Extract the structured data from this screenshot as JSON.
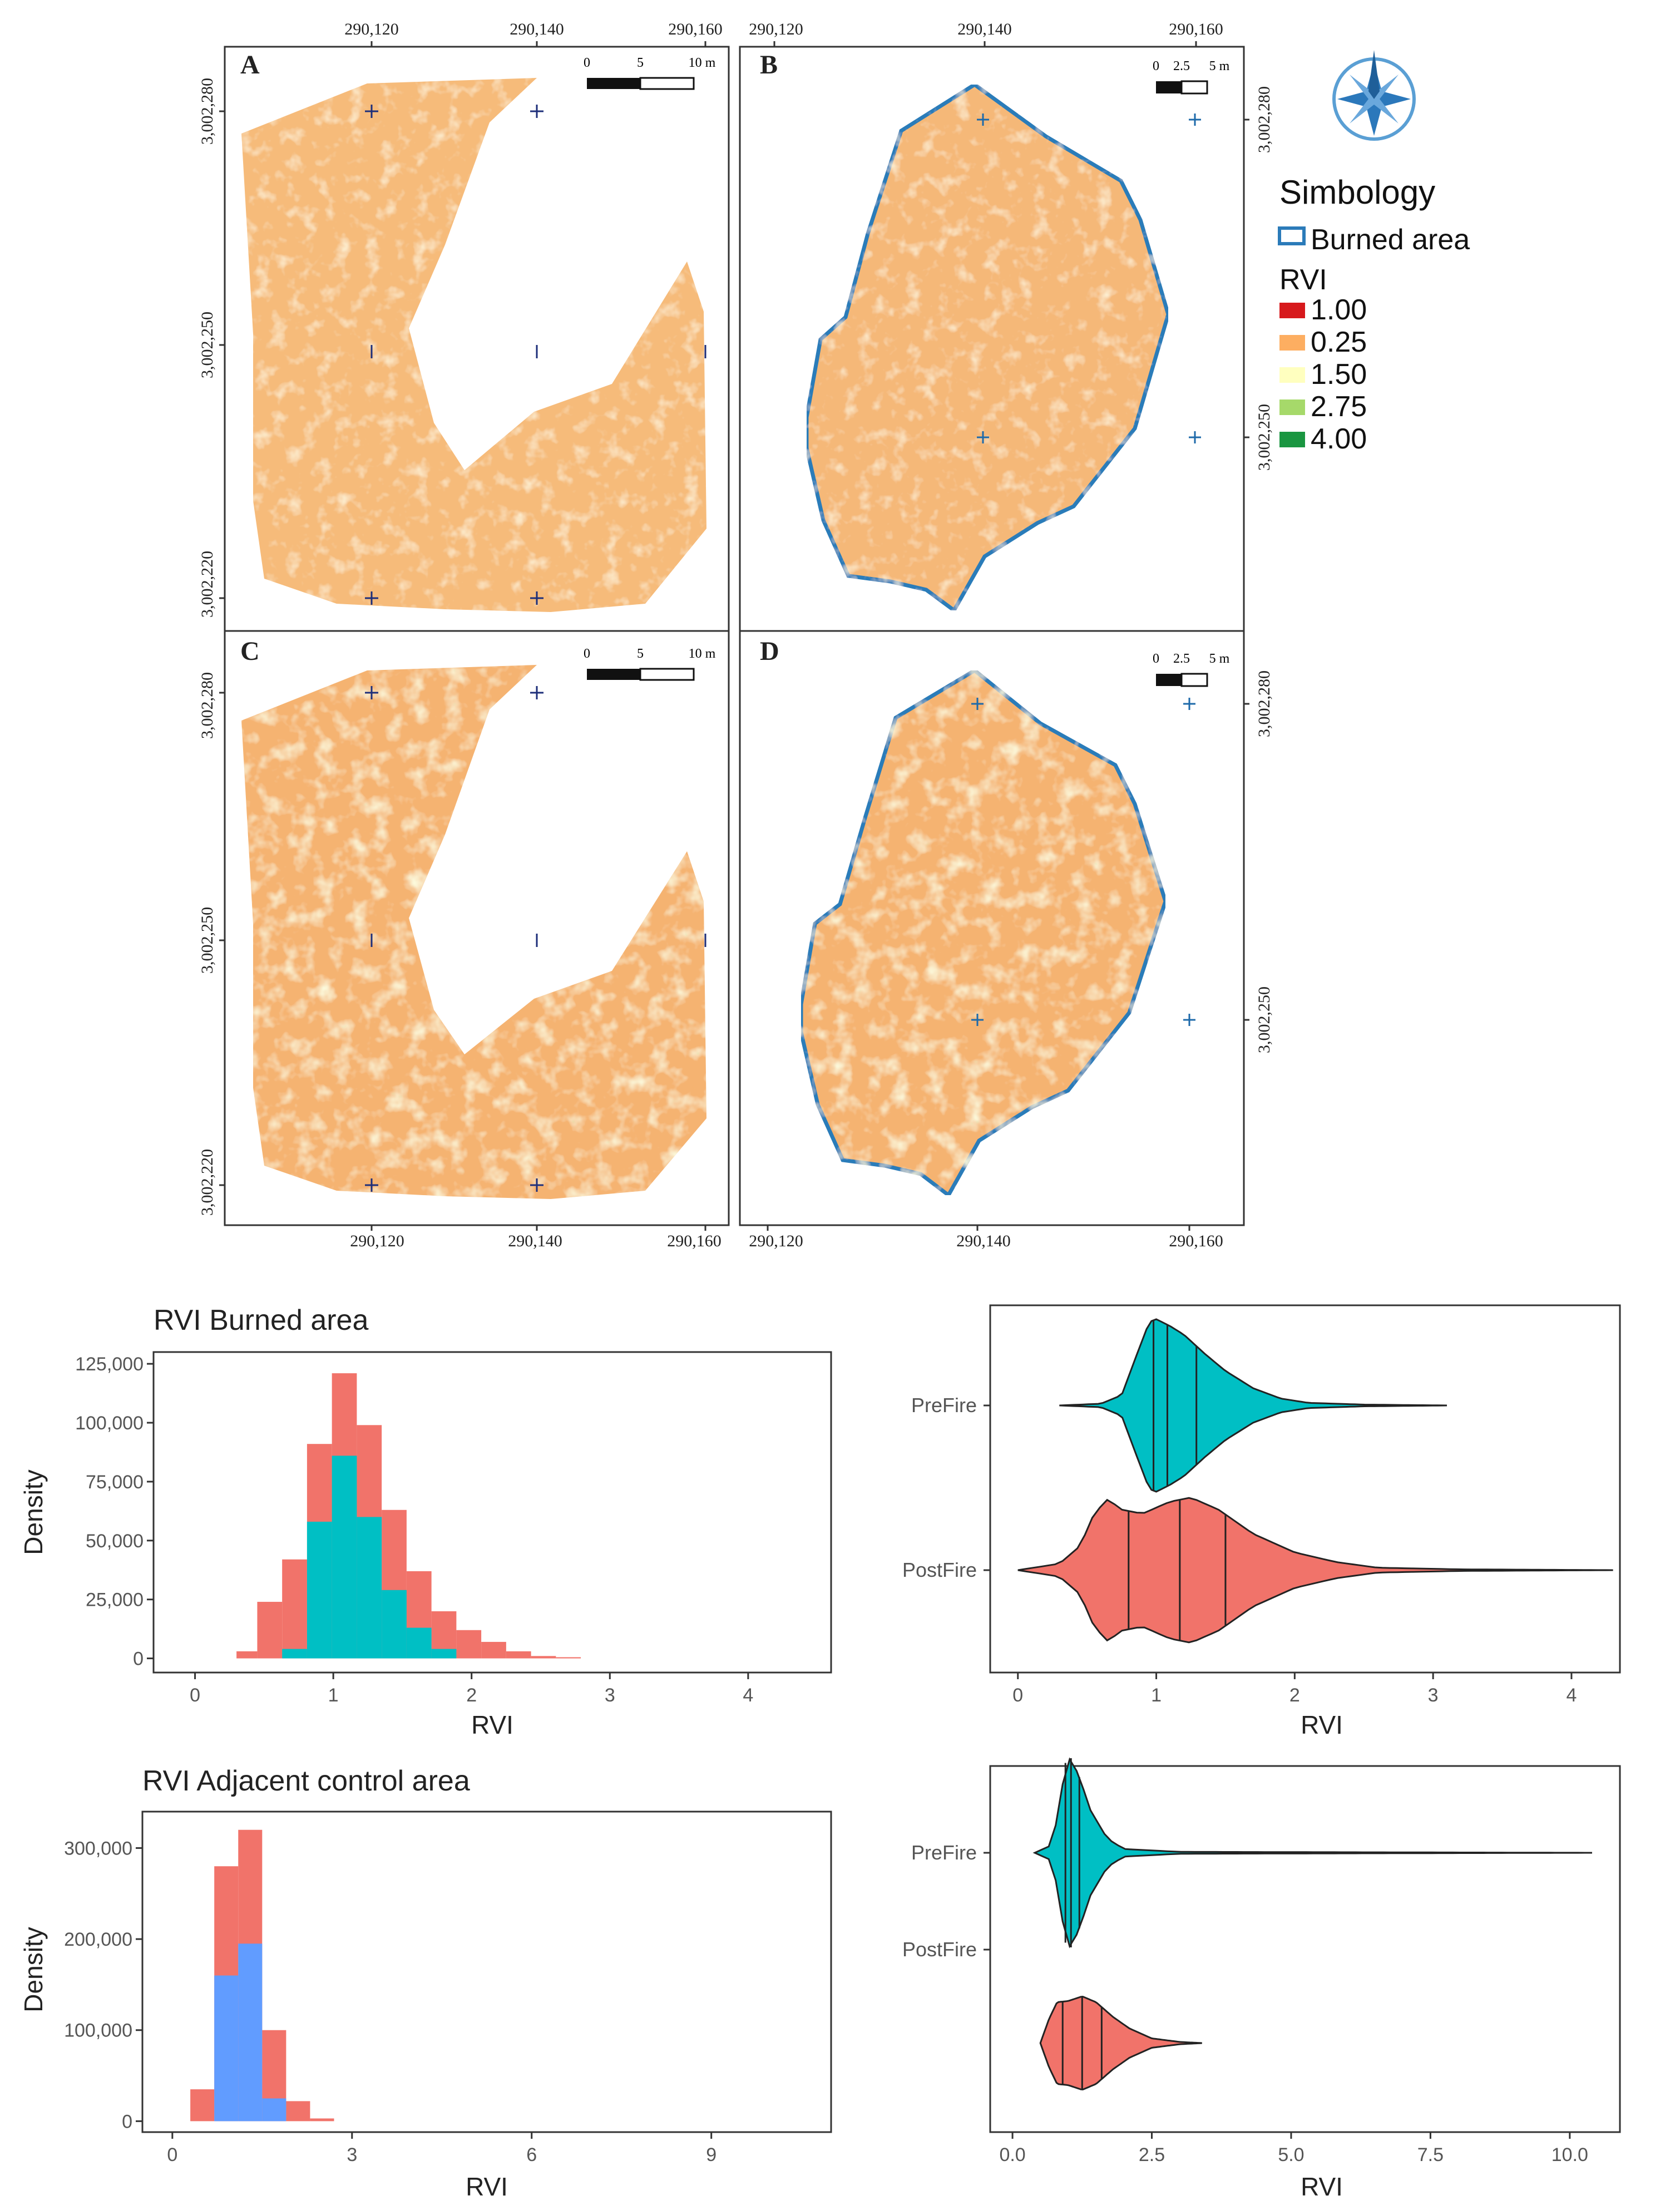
{
  "maps": {
    "panels": [
      {
        "label": "A",
        "scale": [
          "0",
          "5",
          "10 m"
        ]
      },
      {
        "label": "B",
        "scale": [
          "0",
          "2.5",
          "5 m"
        ]
      },
      {
        "label": "C",
        "scale": [
          "0",
          "5",
          "10 m"
        ]
      },
      {
        "label": "D",
        "scale": [
          "0",
          "2.5",
          "5 m"
        ]
      }
    ],
    "top_ticks_left": [
      "290,120",
      "290,140",
      "290,160"
    ],
    "top_ticks_right": [
      "290,120",
      "290,140",
      "290,160"
    ],
    "bottom_ticks_left": [
      "290,120",
      "290,140",
      "290,160"
    ],
    "bottom_ticks_right": [
      "290,120",
      "290,140",
      "290,160"
    ],
    "left_ticks_top": [
      "3,002,280",
      "3,002,250",
      "3,002,220"
    ],
    "left_ticks_bottom": [
      "3,002,280",
      "3,002,250",
      "3,002,220"
    ],
    "right_ticks_top": [
      "3,002,280",
      "3,002,250"
    ],
    "right_ticks_bottom": [
      "3,002,280",
      "3,002,250"
    ]
  },
  "legend": {
    "title": "Simbology",
    "burned_label": "Burned area",
    "rvi_title": "RVI",
    "items": [
      {
        "label": "1.00",
        "color": "#d7191c"
      },
      {
        "label": "0.25",
        "color": "#fdae61"
      },
      {
        "label": "1.50",
        "color": "#ffffbf"
      },
      {
        "label": "2.75",
        "color": "#a6d96a"
      },
      {
        "label": "4.00",
        "color": "#1a9641"
      }
    ],
    "outline_color": "#2b7bb9"
  },
  "colors": {
    "post": "#f1736a",
    "pre_burned": "#00bfc4",
    "pre_control": "#619cff"
  },
  "chart_data": [
    {
      "type": "bar",
      "title": "RVI Burned area",
      "xlabel": "RVI",
      "ylabel": "Density",
      "xlim": [
        -0.3,
        4.6
      ],
      "ylim": [
        -6000,
        130000
      ],
      "xticks": [
        0,
        1,
        2,
        3,
        4
      ],
      "xticklabels": [
        "0",
        "1",
        "2",
        "3",
        "4"
      ],
      "yticks": [
        0,
        25000,
        50000,
        75000,
        100000,
        125000
      ],
      "yticklabels": [
        "0",
        "25,000",
        "50,000",
        "75,000",
        "100,000",
        "125,000"
      ],
      "bin_edges": [
        0.3,
        0.45,
        0.63,
        0.81,
        0.99,
        1.17,
        1.35,
        1.53,
        1.71,
        1.89,
        2.07,
        2.25,
        2.43,
        2.61,
        2.79
      ],
      "series": [
        {
          "name": "PostFire",
          "color": "#f1736a",
          "values": [
            3000,
            24000,
            42000,
            91000,
            121000,
            99000,
            63000,
            37000,
            20000,
            12000,
            7000,
            3000,
            1000,
            500
          ]
        },
        {
          "name": "PreFire",
          "color": "#00bfc4",
          "values": [
            0,
            0,
            4000,
            58000,
            86000,
            60000,
            29000,
            13000,
            4000,
            0,
            0,
            0,
            0,
            0
          ]
        }
      ]
    },
    {
      "type": "violin",
      "xlabel": "RVI",
      "xlim": [
        -0.2,
        4.35
      ],
      "xticks": [
        0,
        1,
        2,
        3,
        4
      ],
      "xticklabels": [
        "0",
        "1",
        "2",
        "3",
        "4"
      ],
      "categories": [
        "PreFire",
        "PostFire"
      ],
      "series": [
        {
          "name": "PreFire",
          "color": "#00bfc4",
          "min": 0.3,
          "max": 3.1,
          "quantiles": [
            0.98,
            1.08,
            1.29
          ],
          "profile": [
            [
              0.3,
              0
            ],
            [
              0.6,
              0.02
            ],
            [
              0.75,
              0.12
            ],
            [
              0.85,
              0.55
            ],
            [
              0.95,
              0.97
            ],
            [
              1.0,
              1.0
            ],
            [
              1.1,
              0.92
            ],
            [
              1.2,
              0.82
            ],
            [
              1.35,
              0.6
            ],
            [
              1.5,
              0.4
            ],
            [
              1.7,
              0.2
            ],
            [
              1.9,
              0.08
            ],
            [
              2.1,
              0.03
            ],
            [
              2.5,
              0.01
            ],
            [
              3.1,
              0
            ]
          ]
        },
        {
          "name": "PostFire",
          "color": "#f1736a",
          "min": 0.0,
          "max": 4.3,
          "quantiles": [
            0.8,
            1.17,
            1.5
          ],
          "profile": [
            [
              0.0,
              0
            ],
            [
              0.3,
              0.08
            ],
            [
              0.45,
              0.3
            ],
            [
              0.55,
              0.7
            ],
            [
              0.65,
              0.88
            ],
            [
              0.75,
              0.75
            ],
            [
              0.9,
              0.7
            ],
            [
              1.1,
              0.85
            ],
            [
              1.25,
              0.9
            ],
            [
              1.45,
              0.75
            ],
            [
              1.7,
              0.45
            ],
            [
              2.0,
              0.22
            ],
            [
              2.3,
              0.1
            ],
            [
              2.6,
              0.03
            ],
            [
              3.2,
              0.01
            ],
            [
              4.3,
              0
            ]
          ]
        }
      ]
    },
    {
      "type": "bar",
      "title": "RVI Adjacent control area",
      "xlabel": "RVI",
      "ylabel": "Density",
      "xlim": [
        -0.5,
        11.0
      ],
      "ylim": [
        -12000,
        340000
      ],
      "xticks": [
        0,
        3,
        6,
        9
      ],
      "xticklabels": [
        "0",
        "3",
        "6",
        "9"
      ],
      "yticks": [
        0,
        100000,
        200000,
        300000
      ],
      "yticklabels": [
        "0",
        "100,000",
        "200,000",
        "300,000"
      ],
      "bin_edges": [
        0.3,
        0.7,
        1.1,
        1.5,
        1.9,
        2.3,
        2.7
      ],
      "series": [
        {
          "name": "PostFire",
          "color": "#f1736a",
          "values": [
            35000,
            280000,
            320000,
            100000,
            22000,
            3000
          ]
        },
        {
          "name": "PreFire",
          "color": "#619cff",
          "values": [
            0,
            160000,
            195000,
            25000,
            0,
            0
          ]
        }
      ]
    },
    {
      "type": "violin",
      "xlabel": "RVI",
      "xlim": [
        -0.4,
        10.9
      ],
      "xticks": [
        0,
        2.5,
        5,
        7.5,
        10
      ],
      "xticklabels": [
        "0.0",
        "2.5",
        "5.0",
        "7.5",
        "10.0"
      ],
      "categories": [
        "PreFire",
        "PostFire"
      ],
      "series": [
        {
          "name": "PreFire",
          "color": "#00bfc4",
          "min": 0.4,
          "max": 10.4,
          "quantiles": [
            0.95,
            1.05,
            1.2
          ],
          "profile": [
            [
              0.4,
              0
            ],
            [
              0.7,
              0.08
            ],
            [
              0.85,
              0.5
            ],
            [
              0.95,
              0.95
            ],
            [
              1.05,
              1.0
            ],
            [
              1.2,
              0.8
            ],
            [
              1.4,
              0.45
            ],
            [
              1.7,
              0.15
            ],
            [
              2.0,
              0.04
            ],
            [
              3.0,
              0.01
            ],
            [
              10.4,
              0
            ]
          ]
        },
        {
          "name": "PostFire",
          "color": "#f1736a",
          "min": 0.5,
          "max": 3.4,
          "quantiles": [
            0.9,
            1.25,
            1.6
          ],
          "profile": [
            [
              0.5,
              0
            ],
            [
              0.65,
              0.4
            ],
            [
              0.8,
              0.7
            ],
            [
              1.0,
              0.72
            ],
            [
              1.25,
              0.8
            ],
            [
              1.5,
              0.7
            ],
            [
              1.8,
              0.45
            ],
            [
              2.1,
              0.25
            ],
            [
              2.5,
              0.08
            ],
            [
              3.0,
              0.02
            ],
            [
              3.4,
              0
            ]
          ]
        }
      ]
    }
  ]
}
